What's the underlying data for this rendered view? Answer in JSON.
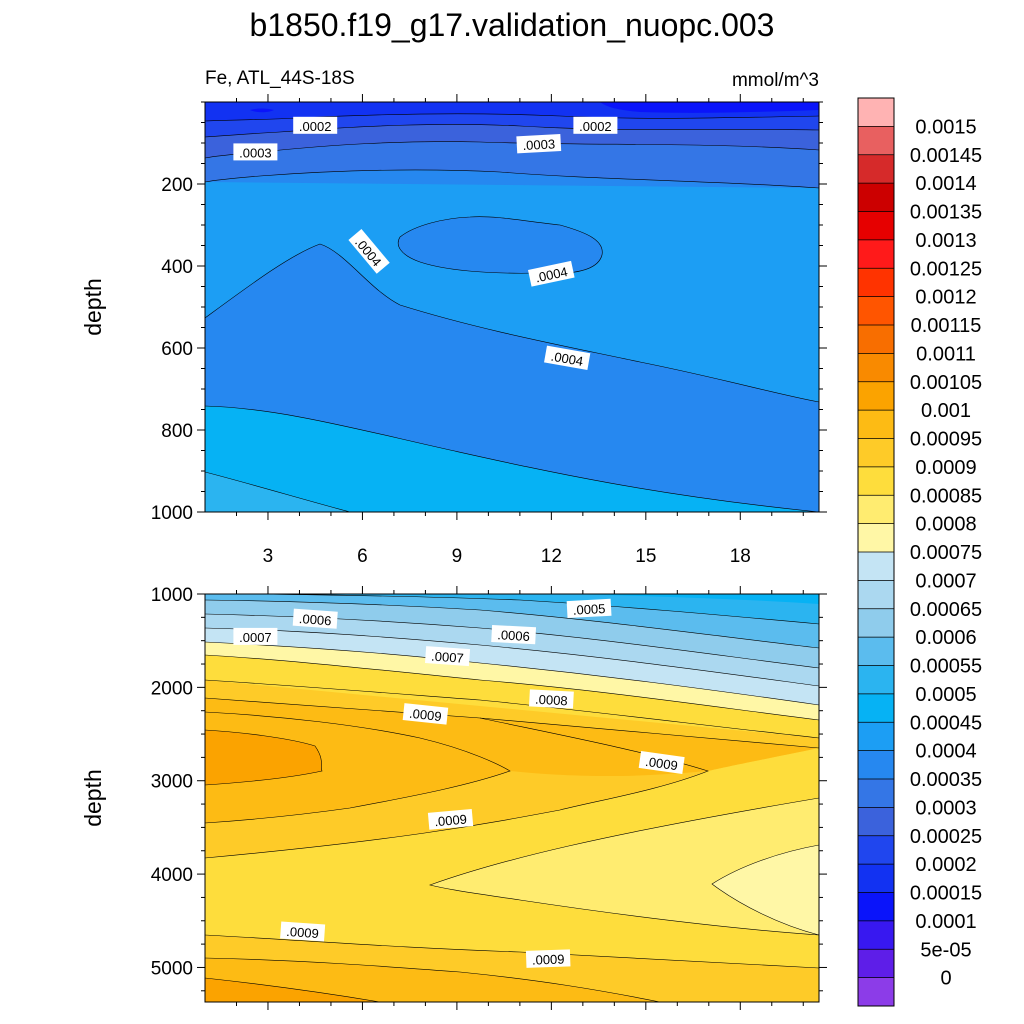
{
  "title": "b1850.f19_g17.validation_nuopc.003",
  "chart_data": {
    "type": "heatmap",
    "variable_label": "Fe, ATL_44S-18S",
    "units": "mmol/m^3",
    "panels": [
      {
        "name": "upper",
        "ylabel": "depth",
        "ylim": [
          1000,
          0
        ],
        "y_ticks": [
          200,
          400,
          600,
          800,
          1000
        ],
        "x_ticks": [
          3,
          6,
          9,
          12,
          15,
          18
        ],
        "xlim": [
          1,
          20.5
        ],
        "contour_labels": [
          {
            "text": ".0002",
            "x": 4.5,
            "y": 58,
            "angle": 0
          },
          {
            "text": ".0002",
            "x": 13.4,
            "y": 58,
            "angle": 0
          },
          {
            "text": ".0003",
            "x": 2.6,
            "y": 123,
            "angle": 0
          },
          {
            "text": ".0003",
            "x": 11.6,
            "y": 103,
            "angle": -3
          },
          {
            "text": ".0004",
            "x": 6.2,
            "y": 365,
            "angle": 50
          },
          {
            "text": ".0004",
            "x": 12.0,
            "y": 420,
            "angle": -12
          },
          {
            "text": ".0004",
            "x": 12.5,
            "y": 625,
            "angle": 10
          }
        ]
      },
      {
        "name": "lower",
        "ylabel": "depth",
        "ylim": [
          5370,
          1000
        ],
        "y_ticks": [
          1000,
          2000,
          3000,
          4000,
          5000
        ],
        "xlim": [
          1,
          20.5
        ],
        "contour_labels": [
          {
            "text": ".0006",
            "x": 4.5,
            "y": 1270,
            "angle": 4
          },
          {
            "text": ".0007",
            "x": 2.6,
            "y": 1460,
            "angle": 0
          },
          {
            "text": ".0005",
            "x": 13.2,
            "y": 1160,
            "angle": -3
          },
          {
            "text": ".0006",
            "x": 10.8,
            "y": 1440,
            "angle": 3
          },
          {
            "text": ".0007",
            "x": 8.7,
            "y": 1670,
            "angle": 4
          },
          {
            "text": ".0008",
            "x": 12.0,
            "y": 2130,
            "angle": 3
          },
          {
            "text": ".0009",
            "x": 8.0,
            "y": 2290,
            "angle": 6
          },
          {
            "text": ".0009",
            "x": 15.5,
            "y": 2810,
            "angle": 8
          },
          {
            "text": ".0009",
            "x": 8.8,
            "y": 3420,
            "angle": -5
          },
          {
            "text": ".0009",
            "x": 4.1,
            "y": 4620,
            "angle": 4
          },
          {
            "text": ".0009",
            "x": 11.9,
            "y": 4910,
            "angle": -2
          }
        ]
      }
    ],
    "colorbar": {
      "levels": [
        "0.0015",
        "0.00145",
        "0.0014",
        "0.00135",
        "0.0013",
        "0.00125",
        "0.0012",
        "0.00115",
        "0.0011",
        "0.00105",
        "0.001",
        "0.00095",
        "0.0009",
        "0.00085",
        "0.0008",
        "0.00075",
        "0.0007",
        "0.00065",
        "0.0006",
        "0.00055",
        "0.0005",
        "0.00045",
        "0.0004",
        "0.00035",
        "0.0003",
        "0.00025",
        "0.0002",
        "0.00015",
        "0.0001",
        "5e-05",
        "0"
      ],
      "colors": [
        "#FFB3B3",
        "#E86060",
        "#D62A2A",
        "#CC0000",
        "#E60000",
        "#FF1A1A",
        "#FF3300",
        "#FF5500",
        "#F86E00",
        "#F98A00",
        "#FBA300",
        "#FDBB14",
        "#FECB28",
        "#FEDD3C",
        "#FFEC70",
        "#FFF7A6",
        "#C4E4F4",
        "#ABD8F0",
        "#8FCCEC",
        "#5BBCEE",
        "#2BB4F0",
        "#06B2F4",
        "#1C9EF4",
        "#2688F0",
        "#3476E6",
        "#3B62DC",
        "#2046EE",
        "#1232F2",
        "#0A14FA",
        "#3818F0",
        "#5E1EE8",
        "#8C3CE8"
      ]
    }
  }
}
